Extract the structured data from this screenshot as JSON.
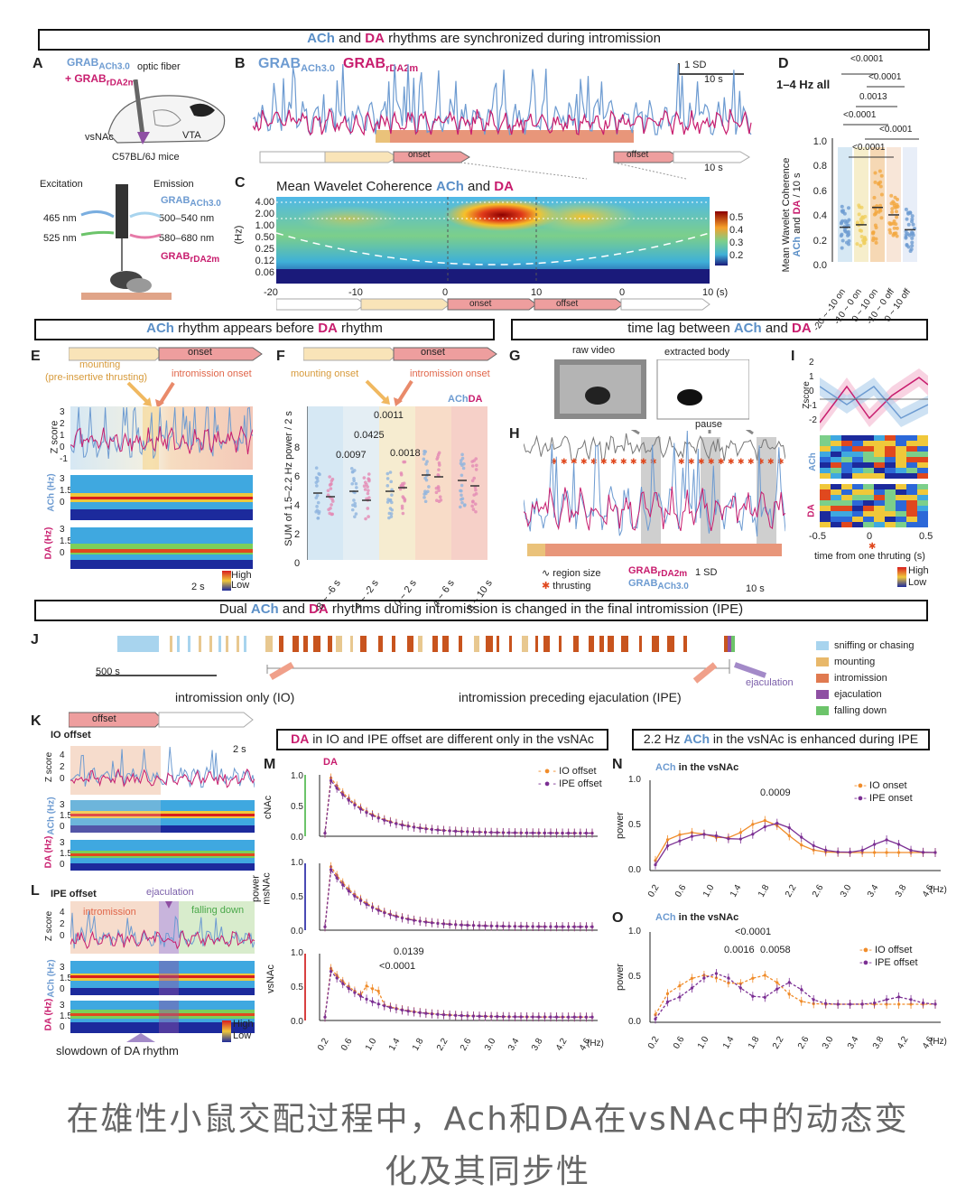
{
  "headers": {
    "h1": {
      "pre": "",
      "ach": "ACh",
      "mid": " and ",
      "da": "DA",
      "post": " rhythms are synchronized during intromission"
    },
    "h2": {
      "pre": "",
      "ach": "ACh",
      "mid": " rhythm appears before ",
      "da": "DA",
      "post": " rhythm"
    },
    "h3": {
      "pre": "time lag between ",
      "ach": "ACh",
      "mid": " and ",
      "da": "DA",
      "post": ""
    },
    "h4": {
      "pre": "Dual ",
      "ach": "ACh",
      "mid": " and ",
      "da": "DA",
      "post": " rhythms during intromission is changed in the final intromission (IPE)"
    },
    "h5": {
      "pre": "",
      "da": "DA",
      "post": " in IO and IPE offset are different only in the vsNAc"
    },
    "h6": {
      "pre": "2.2 Hz ",
      "ach": "ACh",
      "post": " in the vsNAc is enhanced during IPE"
    }
  },
  "panel_letters": [
    "A",
    "B",
    "C",
    "D",
    "E",
    "F",
    "G",
    "H",
    "I",
    "J",
    "K",
    "L",
    "M",
    "N",
    "O"
  ],
  "panelA": {
    "grab_ach": "GRAB",
    "grab_ach_sub": "ACh3.0",
    "grab_da": "+ GRAB",
    "grab_da_sub": "rDA2m",
    "optic": "optic fiber",
    "vsnac": "vsNAc",
    "vta": "VTA",
    "mice": "C57BL/6J mice",
    "excitation": "Excitation",
    "emission": "Emission",
    "nm465": "465 nm",
    "nm525": "525 nm",
    "nm500": "500–540 nm",
    "nm580": "580–680 nm",
    "em_ach": "GRAB",
    "em_ach_sub": "ACh3.0",
    "em_da": "GRAB",
    "em_da_sub": "rDA2m"
  },
  "panelB": {
    "legend_ach": "GRAB",
    "legend_ach_sub": "ACh3.0",
    "legend_da": "GRAB",
    "legend_da_sub": "rDA2m",
    "scale_y": "1 SD",
    "scale_x": "10 s",
    "onset": "onset",
    "offset": "offset",
    "scale_x2": "10 s"
  },
  "panelC": {
    "title_pre": "Mean Wavelet Coherence ",
    "title_ach": "ACh",
    "title_mid": " and ",
    "title_da": "DA",
    "ylabel": "(Hz)",
    "yticks": [
      "4.00",
      "2.00",
      "1.00",
      "0.50",
      "0.25",
      "0.12",
      "0.06"
    ],
    "xticks": [
      "-20",
      "-10",
      "0",
      "10",
      "0",
      "10 (s)"
    ],
    "cbar": [
      "0.5",
      "0.4",
      "0.3",
      "0.2"
    ],
    "onset": "onset",
    "offset": "offset"
  },
  "panelD": {
    "title": "1–4 Hz all",
    "ylabel_pre": "Mean Wavelet Coherence",
    "ylabel_ach": "ACh",
    "ylabel_mid": " and ",
    "ylabel_da": "DA",
    "ylabel_post": " / 10 s",
    "yticks": [
      "1.0",
      "0.8",
      "0.6",
      "0.4",
      "0.2",
      "0.0"
    ],
    "pvals": [
      "<0.0001",
      "<0.0001",
      "0.0013",
      "<0.0001",
      "<0.0001",
      "<0.0001"
    ],
    "xticks": [
      "-20 ~ -10 on",
      "-10 ~ 0 on",
      "0 ~ 10 on",
      "-10 ~ 0 off",
      "0 ~ 10 off"
    ]
  },
  "panelE": {
    "mounting": "mounting",
    "preins": "(pre-insertive thrusting)",
    "onset": "onset",
    "intro_onset": "intromission onset",
    "zscore": "Z score",
    "ach_hz": "ACh",
    "da_hz": "DA",
    "hz": "(Hz)",
    "scale": "2 s",
    "high": "High",
    "low": "Low",
    "yt_z": [
      "3",
      "2",
      "1",
      "0",
      "-1"
    ],
    "yt_f": [
      "3",
      "1.5",
      "0"
    ]
  },
  "panelF": {
    "mounting_onset": "mounting onset",
    "intro_onset": "intromission onset",
    "onset": "onset",
    "leg_ach": "ACh",
    "leg_da": "DA",
    "ylabel": "SUM of 1.5–2.2 Hz power / 2 s",
    "yticks": [
      "8",
      "6",
      "4",
      "2",
      "0"
    ],
    "pvals": [
      "0.0011",
      "0.0425",
      "0.0097",
      "0.0018"
    ],
    "xticks": [
      "-8 ~ -6 s",
      "-4 ~ -2 s",
      "0 ~ 2 s",
      "4 ~ 6 s",
      "8 ~ 10 s"
    ]
  },
  "panelG": {
    "raw": "raw video",
    "extracted": "extracted body"
  },
  "panelH": {
    "pause": "pause",
    "region": "region size",
    "thrusting": "thrusting",
    "grab_da": "GRAB",
    "grab_da_sub": "rDA2m",
    "grab_ach": "GRAB",
    "grab_ach_sub": "ACh3.0",
    "scale_y": "1 SD",
    "scale_x": "10 s"
  },
  "panelI": {
    "zscore": "Zscore",
    "yt": [
      "2",
      "1",
      "0",
      "-1",
      "-2"
    ],
    "ach": "ACh",
    "da": "DA",
    "xt": [
      "-0.5",
      "0",
      "0.5"
    ],
    "xlabel": "time from one thruting",
    "xunit": "(s)",
    "high": "High",
    "low": "Low"
  },
  "panelJ": {
    "scale": "500 s",
    "io": "intromission only (IO)",
    "ipe": "intromission preceding ejaculation (IPE)",
    "ejac": "ejaculation",
    "legend": [
      {
        "label": "sniffing or chasing",
        "color": "#a8d4ee"
      },
      {
        "label": "mounting",
        "color": "#e8b86a"
      },
      {
        "label": "intromission",
        "color": "#e07a50"
      },
      {
        "label": "ejaculation",
        "color": "#8e4fa3"
      },
      {
        "label": "falling down",
        "color": "#6cc46a"
      }
    ]
  },
  "panelK": {
    "offset": "offset",
    "title": "IO offset",
    "zscore": "Z score",
    "scale": "2 s",
    "ach": "ACh",
    "da": "DA",
    "hz": "(Hz)",
    "yt_z": [
      "4",
      "2",
      "0"
    ],
    "yt_f": [
      "3",
      "1.5",
      "0"
    ]
  },
  "panelL": {
    "title": "IPE offset",
    "ejac": "ejaculation",
    "intro": "intromission",
    "falling": "falling down",
    "zscore": "Z score",
    "ach": "ACh",
    "da": "DA",
    "hz": "(Hz)",
    "yt_z": [
      "4",
      "2",
      "0"
    ],
    "yt_f": [
      "3",
      "1.5",
      "0"
    ],
    "high": "High",
    "low": "Low",
    "slowdown": "slowdown of DA rhythm"
  },
  "panelM": {
    "da": "DA",
    "leg1": "IO offset",
    "leg2": "IPE offset",
    "rows": [
      "cNAc",
      "msNAc",
      "vsNAc"
    ],
    "power": "power",
    "yticks": [
      "1.0",
      "0.5",
      "0.0"
    ],
    "pvals": [
      "0.0139",
      "<0.0001"
    ],
    "xticks": [
      "0.2",
      "0.6",
      "1.0",
      "1.4",
      "1.8",
      "2.2",
      "2.6",
      "3.0",
      "3.4",
      "3.8",
      "4.2",
      "4.6"
    ],
    "xunit": "(Hz)"
  },
  "panelN": {
    "title_ach": "ACh",
    "title_post": " in  the vsNAc",
    "leg1": "IO onset",
    "leg2": "IPE onset",
    "ylabel": "power",
    "yticks": [
      "1.0",
      "0.5",
      "0.0"
    ],
    "pval": "0.0009",
    "xticks": [
      "0.2",
      "0.6",
      "1.0",
      "1.4",
      "1.8",
      "2.2",
      "2.6",
      "3.0",
      "3.4",
      "3.8",
      "4.6"
    ],
    "xunit": "(Hz)"
  },
  "panelO": {
    "title_ach": "ACh",
    "title_post": " in  the vsNAc",
    "leg1": "IO offset",
    "leg2": "IPE offset",
    "ylabel": "power",
    "yticks": [
      "1.0",
      "0.5",
      "0.0"
    ],
    "pvals": [
      "<0.0001",
      "0.0016",
      "0.0058"
    ],
    "xticks": [
      "0.2",
      "0.6",
      "1.0",
      "1.4",
      "1.8",
      "2.2",
      "2.6",
      "3.0",
      "3.4",
      "3.8",
      "4.2",
      "4.6"
    ],
    "xunit": "(Hz)"
  },
  "colors": {
    "ach": "#6d9bd1",
    "da": "#c81d6e",
    "io": "#f08c2a",
    "ipe": "#7b2f93"
  },
  "caption_line1": "在雄性小鼠交配过程中，Ach和DA在vsNAc中的动态变",
  "caption_line2": "化及其同步性"
}
